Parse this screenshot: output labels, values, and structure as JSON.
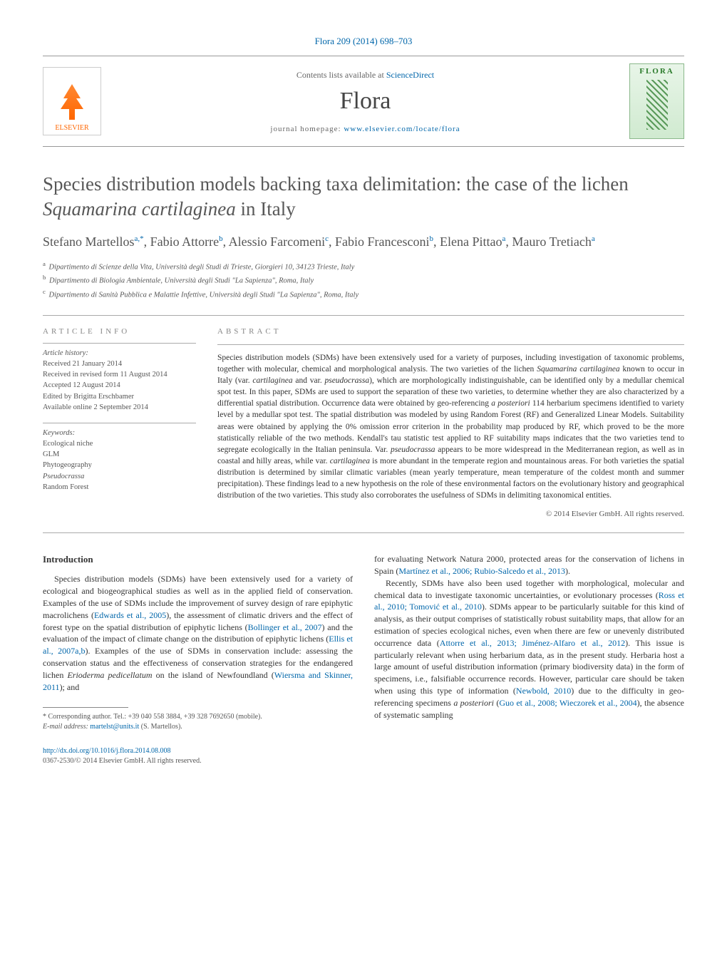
{
  "top_citation": {
    "journal_text": "Flora 209 (2014) 698–703"
  },
  "header": {
    "publisher_logo": "ELSEVIER",
    "contents_prefix": "Contents lists available at ",
    "contents_link": "ScienceDirect",
    "journal_name": "Flora",
    "homepage_label": "journal homepage: ",
    "homepage_url": "www.elsevier.com/locate/flora",
    "cover_label": "FLORA"
  },
  "title": {
    "pre": "Species distribution models backing taxa delimitation: the case of the lichen ",
    "ital": "Squamarina cartilaginea",
    "post": " in Italy"
  },
  "authors": [
    {
      "name": "Stefano Martellos",
      "sup": "a,*"
    },
    {
      "name": "Fabio Attorre",
      "sup": "b"
    },
    {
      "name": "Alessio Farcomeni",
      "sup": "c"
    },
    {
      "name": "Fabio Francesconi",
      "sup": "b"
    },
    {
      "name": "Elena Pittao",
      "sup": "a"
    },
    {
      "name": "Mauro Tretiach",
      "sup": "a"
    }
  ],
  "affiliations": [
    {
      "sup": "a",
      "text": "Dipartimento di Scienze della Vita, Università degli Studi di Trieste, Giorgieri 10, 34123 Trieste, Italy"
    },
    {
      "sup": "b",
      "text": "Dipartimento di Biologia Ambientale, Università degli Studi \"La Sapienza\", Roma, Italy"
    },
    {
      "sup": "c",
      "text": "Dipartimento di Sanità Pubblica e Malattie Infettive, Università degli Studi \"La Sapienza\", Roma, Italy"
    }
  ],
  "article_info": {
    "heading": "ARTICLE INFO",
    "history_title": "Article history:",
    "history": [
      "Received 21 January 2014",
      "Received in revised form 11 August 2014",
      "Accepted 12 August 2014",
      "Edited by Brigitta Erschbamer",
      "Available online 2 September 2014"
    ],
    "keywords_title": "Keywords:",
    "keywords": [
      "Ecological niche",
      "GLM",
      "Phytogeography",
      "Pseudocrassa",
      "Random Forest"
    ]
  },
  "abstract": {
    "heading": "ABSTRACT",
    "text_parts": [
      "Species distribution models (SDMs) have been extensively used for a variety of purposes, including investigation of taxonomic problems, together with molecular, chemical and morphological analysis. The two varieties of the lichen ",
      "Squamarina cartilaginea",
      " known to occur in Italy (var. ",
      "cartilaginea",
      " and var. ",
      "pseudocrassa",
      "), which are morphologically indistinguishable, can be identified only by a medullar chemical spot test. In this paper, SDMs are used to support the separation of these two varieties, to determine whether they are also characterized by a differential spatial distribution. Occurrence data were obtained by geo-referencing ",
      "a posteriori",
      " 114 herbarium specimens identified to variety level by a medullar spot test. The spatial distribution was modeled by using Random Forest (RF) and Generalized Linear Models. Suitability areas were obtained by applying the 0% omission error criterion in the probability map produced by RF, which proved to be the more statistically reliable of the two methods. Kendall's tau statistic test applied to RF suitability maps indicates that the two varieties tend to segregate ecologically in the Italian peninsula. Var. ",
      "pseudocrassa",
      " appears to be more widespread in the Mediterranean region, as well as in coastal and hilly areas, while var. ",
      "cartilaginea",
      " is more abundant in the temperate region and mountainous areas. For both varieties the spatial distribution is determined by similar climatic variables (mean yearly temperature, mean temperature of the coldest month and summer precipitation). These findings lead to a new hypothesis on the role of these environmental factors on the evolutionary history and geographical distribution of the two varieties. This study also corroborates the usefulness of SDMs in delimiting taxonomical entities."
    ],
    "copyright": "© 2014 Elsevier GmbH. All rights reserved."
  },
  "body": {
    "intro_heading": "Introduction",
    "left_paras": [
      {
        "segments": [
          {
            "t": "Species distribution models (SDMs) have been extensively used for a variety of ecological and biogeographical studies as well as in the applied field of conservation. Examples of the use of SDMs include the improvement of survey design of rare epiphytic macrolichens ("
          },
          {
            "t": "Edwards et al., 2005",
            "link": true
          },
          {
            "t": "), the assessment of climatic drivers and the effect of forest type on the spatial distribution of epiphytic lichens ("
          },
          {
            "t": "Bollinger et al., 2007",
            "link": true
          },
          {
            "t": ") and the evaluation of the impact of climate change on the distribution of epiphytic lichens ("
          },
          {
            "t": "Ellis et al., 2007a,b",
            "link": true
          },
          {
            "t": "). Examples of the use of SDMs in conservation include: assessing the conservation status and the effectiveness of conservation strategies for the endangered lichen "
          },
          {
            "t": "Erioderma pedicellatum",
            "ital": true
          },
          {
            "t": " on the island of Newfoundland ("
          },
          {
            "t": "Wiersma and Skinner, 2011",
            "link": true
          },
          {
            "t": "); and"
          }
        ]
      }
    ],
    "right_paras": [
      {
        "segments": [
          {
            "t": "for evaluating Network Natura 2000, protected areas for the conservation of lichens in Spain ("
          },
          {
            "t": "Martínez et al., 2006; Rubio-Salcedo et al., 2013",
            "link": true
          },
          {
            "t": ")."
          }
        ],
        "no_indent": true
      },
      {
        "segments": [
          {
            "t": "Recently, SDMs have also been used together with morphological, molecular and chemical data to investigate taxonomic uncertainties, or evolutionary processes ("
          },
          {
            "t": "Ross et al., 2010; Tomović et al., 2010",
            "link": true
          },
          {
            "t": "). SDMs appear to be particularly suitable for this kind of analysis, as their output comprises of statistically robust suitability maps, that allow for an estimation of species ecological niches, even when there are few or unevenly distributed occurrence data ("
          },
          {
            "t": "Attorre et al., 2013; Jiménez-Alfaro et al., 2012",
            "link": true
          },
          {
            "t": "). This issue is particularly relevant when using herbarium data, as in the present study. Herbaria host a large amount of useful distribution information (primary biodiversity data) in the form of specimens, i.e., falsifiable occurrence records. However, particular care should be taken when using this type of information ("
          },
          {
            "t": "Newbold, 2010",
            "link": true
          },
          {
            "t": ") due to the difficulty in geo-referencing specimens "
          },
          {
            "t": "a posteriori",
            "ital": true
          },
          {
            "t": " ("
          },
          {
            "t": "Guo et al., 2008; Wieczorek et al., 2004",
            "link": true
          },
          {
            "t": "), the absence of systematic sampling"
          }
        ]
      }
    ]
  },
  "footnote": {
    "corr_label": "* Corresponding author. Tel.: +39 040 558 3884, +39 328 7692650 (mobile).",
    "email_label": "E-mail address: ",
    "email": "martelst@units.it",
    "email_person": " (S. Martellos)."
  },
  "bottom": {
    "doi": "http://dx.doi.org/10.1016/j.flora.2014.08.008",
    "issn_line": "0367-2530/© 2014 Elsevier GmbH. All rights reserved."
  },
  "colors": {
    "link": "#0066aa",
    "elsevier_orange": "#ff6600",
    "flora_green": "#2a7a2a"
  }
}
